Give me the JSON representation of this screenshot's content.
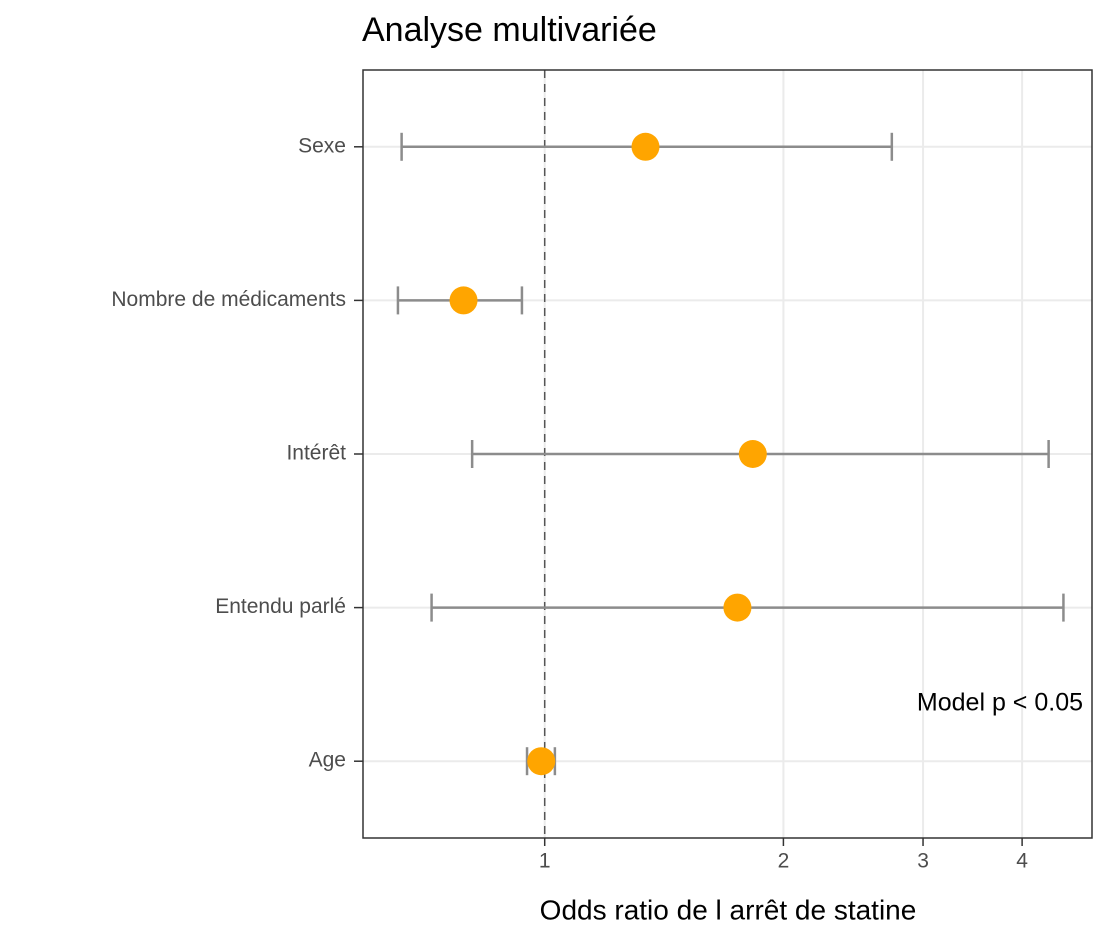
{
  "chart_data": {
    "type": "forest",
    "title": "Analyse multivariée",
    "x_label": "Odds ratio de l arrêt de statine",
    "annotation": "Model p < 0.05",
    "categories": [
      "Sexe",
      "Nombre de médicaments",
      "Intérêt",
      "Entendu parlé",
      "Age"
    ],
    "series": [
      {
        "color": "#FFA500",
        "values": [
          1.34,
          0.79,
          1.83,
          1.75,
          0.99
        ],
        "lower": [
          0.66,
          0.653,
          0.81,
          0.72,
          0.95
        ],
        "upper": [
          2.74,
          0.936,
          4.32,
          4.51,
          1.03
        ]
      }
    ],
    "error_color": "#8c8c8c",
    "xlim": [
      0.59,
      4.9
    ],
    "xticks": [
      1,
      2,
      3,
      4
    ],
    "x_log": true,
    "ref_line": 1,
    "grid": true
  }
}
